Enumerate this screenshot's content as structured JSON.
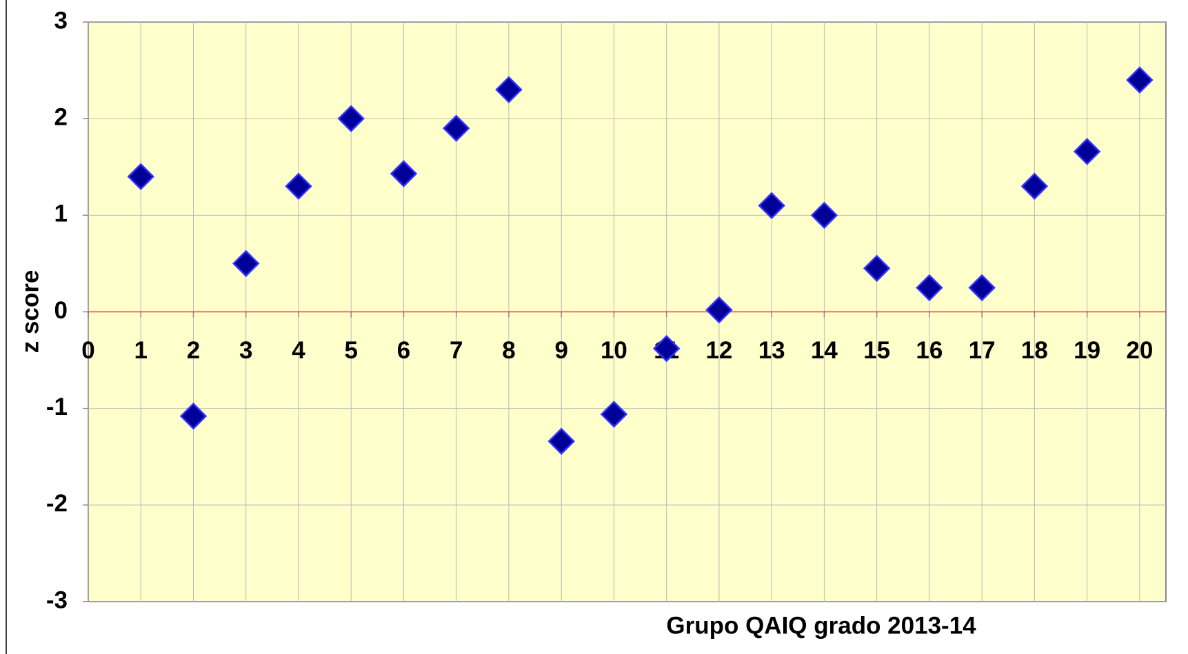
{
  "chart_data": {
    "type": "scatter",
    "xlabel": "Grupo QAIQ grado 2013-14",
    "ylabel": "z score",
    "series": [
      {
        "color": "#000099",
        "x": [
          1,
          2,
          3,
          4,
          5,
          6,
          7,
          8,
          9,
          10,
          11,
          12,
          13,
          14,
          15,
          16,
          17,
          18,
          19,
          20
        ],
        "values": [
          1.4,
          -1.08,
          0.5,
          1.3,
          2.0,
          1.43,
          1.9,
          2.3,
          -1.34,
          -1.06,
          -0.38,
          0.02,
          1.1,
          1.0,
          0.45,
          0.25,
          0.25,
          1.3,
          1.66,
          2.4
        ]
      }
    ],
    "xlim": [
      0,
      20.5
    ],
    "xticks": [
      0,
      1,
      2,
      3,
      4,
      5,
      6,
      7,
      8,
      9,
      10,
      11,
      12,
      13,
      14,
      15,
      16,
      17,
      18,
      19,
      20
    ],
    "ylim": [
      -3,
      3
    ],
    "yticks": [
      -3,
      -2,
      -1,
      0,
      1,
      2,
      3
    ],
    "grid": true
  }
}
